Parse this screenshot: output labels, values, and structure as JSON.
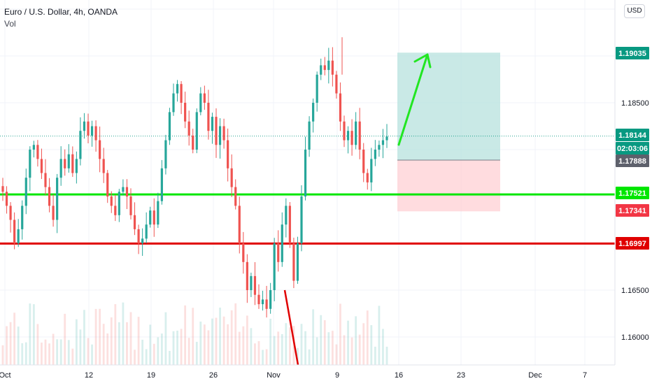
{
  "header": {
    "symbol_line": "Euro / U.S. Dollar, 4h, OANDA",
    "indicator": "Vol",
    "currency_button": "USD"
  },
  "price_axis": {
    "ticks": [
      "1.16000",
      "1.16500",
      "1.18500"
    ]
  },
  "time_axis": {
    "ticks": [
      "Oct",
      "12",
      "19",
      "26",
      "Nov",
      "9",
      "16",
      "23",
      "Dec",
      "7"
    ]
  },
  "price_labels": [
    {
      "id": "target",
      "text": "1.19035",
      "price": 1.19035,
      "color": "#089981"
    },
    {
      "id": "last",
      "text": "1.18144",
      "price": 1.18144,
      "color": "#089981"
    },
    {
      "id": "countdown",
      "text": "02:03:06",
      "color": "#089981"
    },
    {
      "id": "entry",
      "text": "1.17888",
      "price": 1.17888,
      "color": "#5d606b"
    },
    {
      "id": "green-line",
      "text": "1.17521",
      "price": 1.17521,
      "color": "#00e600"
    },
    {
      "id": "stop",
      "text": "1.17341",
      "price": 1.17341,
      "color": "#f23645"
    },
    {
      "id": "red-line",
      "text": "1.16997",
      "price": 1.16997,
      "color": "#e00000"
    }
  ],
  "colors": {
    "up": "#26a69a",
    "down": "#ef5350",
    "support_green": "#00e600",
    "support_red": "#e00000",
    "profit_zone": "#b2dfdb",
    "loss_zone": "#ffcdd2"
  },
  "chart_data": {
    "type": "candlestick",
    "instrument": "Euro / U.S. Dollar",
    "timeframe": "4h",
    "source": "OANDA",
    "y_range": [
      1.1575,
      1.195
    ],
    "x_ticks": [
      "Oct",
      "12",
      "19",
      "26",
      "Nov",
      "9",
      "16",
      "23",
      "Dec",
      "7"
    ],
    "horizontal_lines": [
      1.17521,
      1.16997
    ],
    "long_position": {
      "entry": 1.17888,
      "target": 1.19035,
      "stop": 1.17341
    },
    "last_price": 1.18144,
    "path_close": [
      1.1755,
      1.174,
      1.1725,
      1.17,
      1.1715,
      1.174,
      1.177,
      1.18,
      1.1805,
      1.179,
      1.1775,
      1.176,
      1.174,
      1.1725,
      1.177,
      1.179,
      1.178,
      1.1795,
      1.1775,
      1.179,
      1.182,
      1.183,
      1.1815,
      1.1825,
      1.181,
      1.179,
      1.1775,
      1.175,
      1.174,
      1.173,
      1.1755,
      1.176,
      1.175,
      1.173,
      1.1715,
      1.17,
      1.1705,
      1.172,
      1.1735,
      1.172,
      1.1745,
      1.178,
      1.181,
      1.184,
      1.186,
      1.187,
      1.185,
      1.183,
      1.1815,
      1.18,
      1.184,
      1.186,
      1.185,
      1.182,
      1.1835,
      1.1805,
      1.1825,
      1.181,
      1.178,
      1.176,
      1.174,
      1.17,
      1.168,
      1.165,
      1.1665,
      1.1645,
      1.1635,
      1.164,
      1.163,
      1.165,
      1.17,
      1.168,
      1.172,
      1.174,
      1.17,
      1.166,
      1.17,
      1.175,
      1.18,
      1.183,
      1.185,
      1.188,
      1.189,
      1.1885,
      1.1895,
      1.188,
      1.186,
      1.183,
      1.181,
      1.182,
      1.1805,
      1.183,
      1.18,
      1.1775,
      1.1765,
      1.179,
      1.18,
      1.1805,
      1.181,
      1.1814
    ]
  }
}
